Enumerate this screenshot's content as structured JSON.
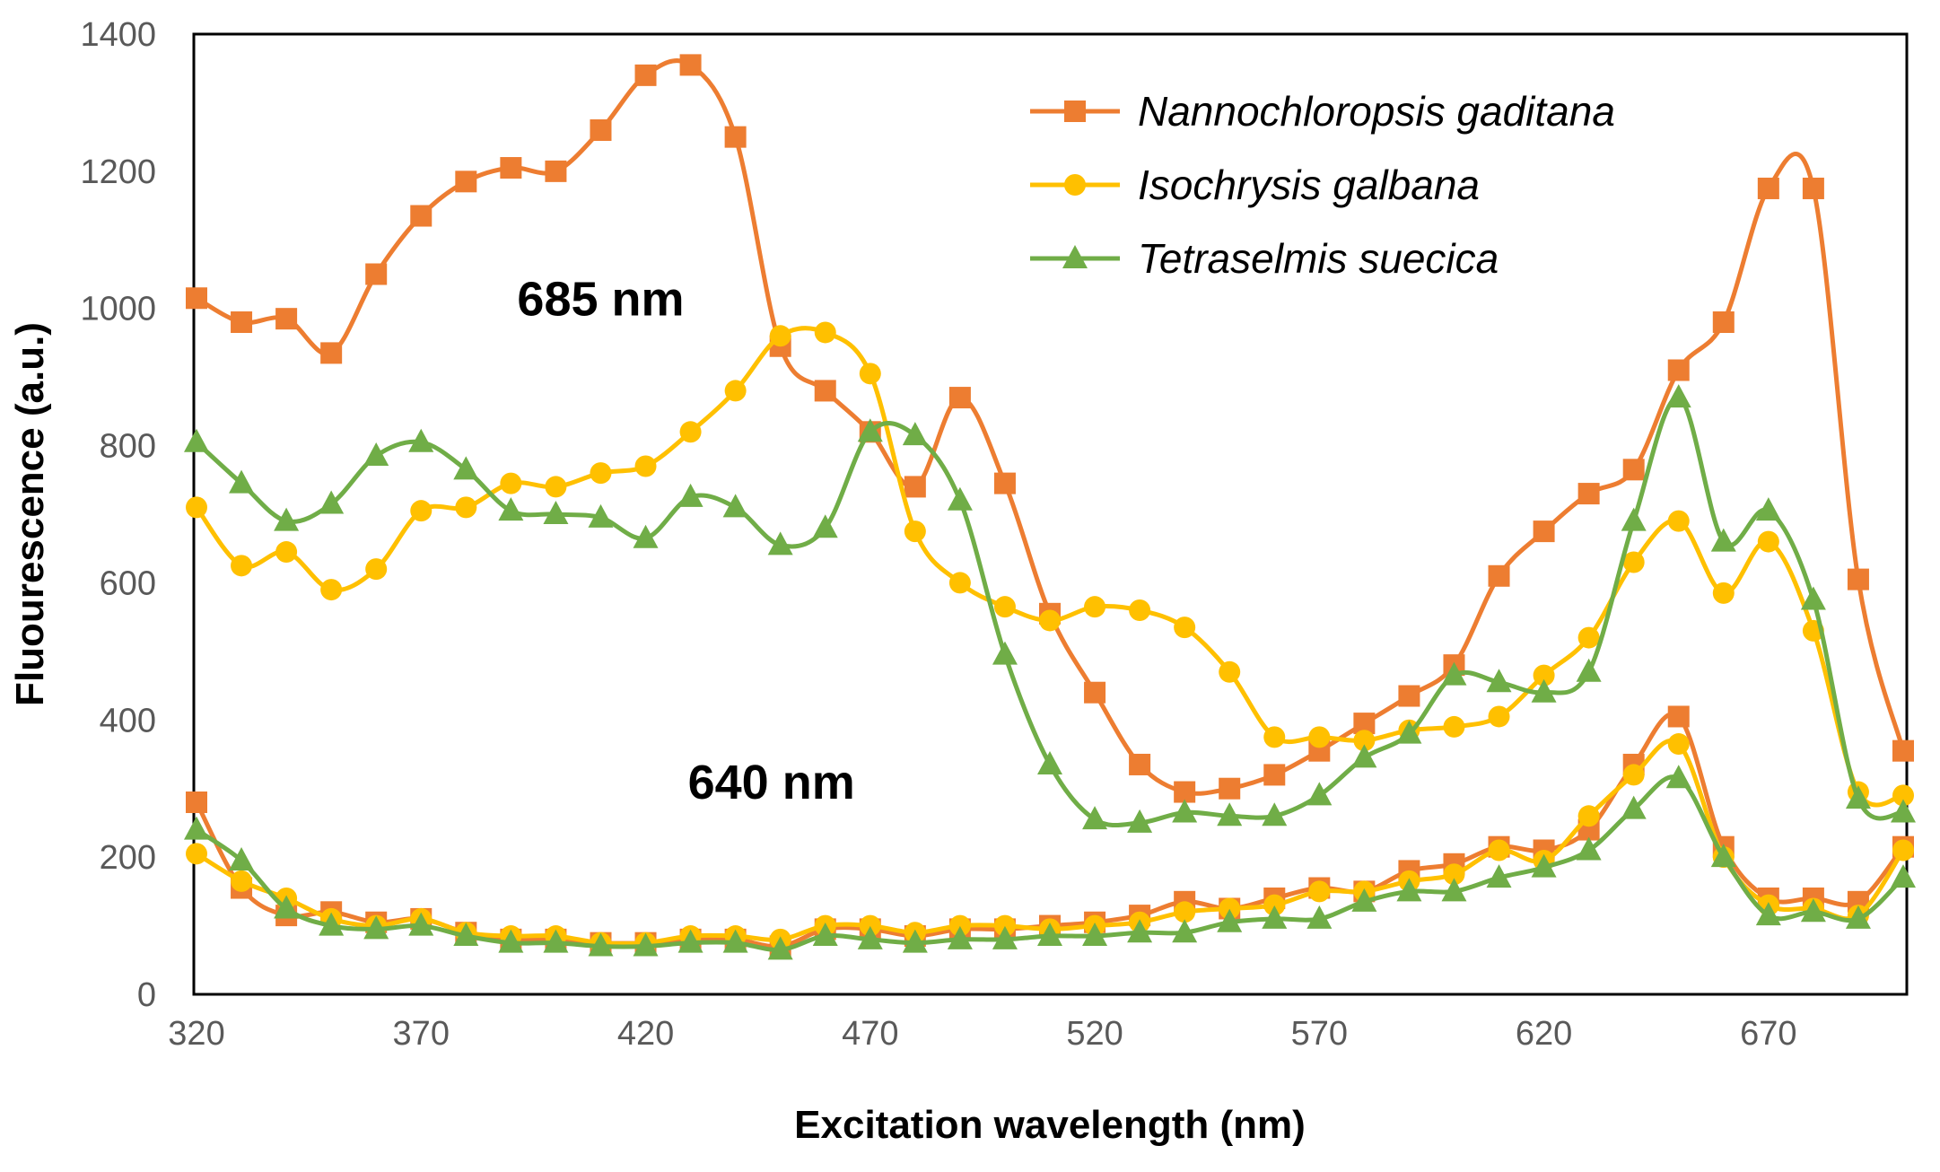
{
  "chart_data": {
    "type": "line",
    "title": "",
    "xlabel": "Excitation wavelength (nm)",
    "ylabel": "Fluourescence (a.u.)",
    "xlim": [
      320,
      700
    ],
    "ylim": [
      0,
      1400
    ],
    "xticks": [
      320,
      370,
      420,
      470,
      520,
      570,
      620,
      670
    ],
    "yticks": [
      0,
      200,
      400,
      600,
      800,
      1000,
      1200,
      1400
    ],
    "x": [
      320,
      330,
      340,
      350,
      360,
      370,
      380,
      390,
      400,
      410,
      420,
      430,
      440,
      450,
      460,
      470,
      480,
      490,
      500,
      510,
      520,
      530,
      540,
      550,
      560,
      570,
      580,
      590,
      600,
      610,
      620,
      630,
      640,
      650,
      660,
      670,
      680,
      690,
      700
    ],
    "annotations": [
      {
        "text": "685 nm",
        "x": 410,
        "y": 990
      },
      {
        "text": "640 nm",
        "x": 448,
        "y": 285
      }
    ],
    "legend_position": "top-right",
    "series": [
      {
        "name": "Nannochloropsis gaditana",
        "emission": "685 nm",
        "color": "#ED7D31",
        "marker": "square",
        "values": [
          1015,
          980,
          985,
          935,
          1050,
          1135,
          1185,
          1205,
          1200,
          1260,
          1340,
          1355,
          1250,
          945,
          880,
          820,
          740,
          870,
          745,
          555,
          440,
          335,
          295,
          300,
          320,
          355,
          395,
          435,
          480,
          610,
          675,
          730,
          765,
          910,
          980,
          1175,
          1175,
          605,
          355
        ]
      },
      {
        "name": "Isochrysis galbana",
        "emission": "685 nm",
        "color": "#FFC000",
        "marker": "circle",
        "values": [
          710,
          625,
          645,
          590,
          620,
          705,
          710,
          745,
          740,
          760,
          770,
          820,
          880,
          960,
          965,
          905,
          675,
          600,
          565,
          545,
          565,
          560,
          535,
          470,
          375,
          375,
          370,
          385,
          390,
          405,
          465,
          520,
          630,
          690,
          585,
          660,
          530,
          295,
          290
        ]
      },
      {
        "name": "Tetraselmis suecica",
        "emission": "685 nm",
        "color": "#70AD47",
        "marker": "triangle",
        "values": [
          805,
          745,
          690,
          715,
          785,
          805,
          765,
          705,
          700,
          695,
          665,
          725,
          710,
          655,
          680,
          820,
          815,
          720,
          495,
          335,
          255,
          250,
          265,
          260,
          260,
          290,
          345,
          380,
          465,
          455,
          440,
          470,
          690,
          870,
          660,
          705,
          575,
          285,
          265
        ]
      },
      {
        "name": "Nannochloropsis gaditana",
        "emission": "640 nm",
        "color": "#ED7D31",
        "marker": "square",
        "values": [
          280,
          155,
          115,
          120,
          105,
          110,
          90,
          80,
          80,
          75,
          75,
          80,
          80,
          70,
          95,
          95,
          85,
          95,
          95,
          100,
          105,
          115,
          135,
          125,
          140,
          155,
          150,
          180,
          190,
          215,
          210,
          240,
          335,
          405,
          215,
          140,
          140,
          135,
          215
        ]
      },
      {
        "name": "Isochrysis galbana",
        "emission": "640 nm",
        "color": "#FFC000",
        "marker": "circle",
        "values": [
          205,
          165,
          140,
          110,
          100,
          110,
          90,
          85,
          85,
          75,
          75,
          85,
          85,
          80,
          100,
          100,
          90,
          100,
          100,
          95,
          100,
          105,
          120,
          125,
          130,
          150,
          150,
          165,
          175,
          210,
          195,
          260,
          320,
          365,
          200,
          130,
          125,
          115,
          210
        ]
      },
      {
        "name": "Tetraselmis suecica",
        "emission": "640 nm",
        "color": "#70AD47",
        "marker": "triangle",
        "values": [
          240,
          195,
          125,
          100,
          95,
          100,
          85,
          75,
          75,
          70,
          70,
          75,
          75,
          65,
          85,
          80,
          75,
          80,
          80,
          85,
          85,
          90,
          90,
          105,
          110,
          110,
          135,
          150,
          150,
          170,
          185,
          210,
          270,
          315,
          200,
          115,
          120,
          110,
          170
        ]
      }
    ],
    "legend": [
      {
        "label": "Nannochloropsis gaditana",
        "color": "#ED7D31",
        "marker": "square"
      },
      {
        "label": "Isochrysis galbana",
        "color": "#FFC000",
        "marker": "circle"
      },
      {
        "label": "Tetraselmis suecica",
        "color": "#70AD47",
        "marker": "triangle"
      }
    ]
  }
}
